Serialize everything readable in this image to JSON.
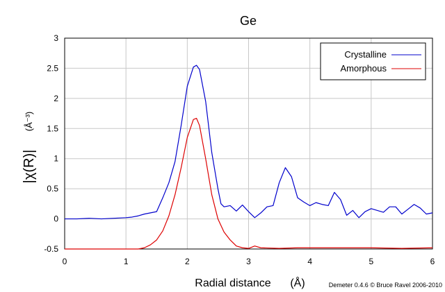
{
  "chart_data": {
    "type": "line",
    "title": "Ge",
    "xlabel": "Radial distance",
    "xlabel_unit": "(Å)",
    "ylabel": "|χ(R)|",
    "ylabel_unit": "(Å⁻³)",
    "xlim": [
      0,
      6
    ],
    "ylim": [
      -0.5,
      3
    ],
    "grid": true,
    "legend_position": "top-right",
    "x_ticks": [
      "0",
      "1",
      "2",
      "3",
      "4",
      "5",
      "6"
    ],
    "y_ticks": [
      "-0.5",
      "0",
      "0.5",
      "1",
      "1.5",
      "2",
      "2.5",
      "3"
    ],
    "x_tick_values": [
      0,
      1,
      2,
      3,
      4,
      5,
      6
    ],
    "y_tick_values": [
      -0.5,
      0,
      0.5,
      1,
      1.5,
      2,
      2.5,
      3
    ],
    "series": [
      {
        "name": "Crystalline",
        "color": "#0000cc",
        "points": [
          [
            0.0,
            0.0
          ],
          [
            0.2,
            0.0
          ],
          [
            0.4,
            0.01
          ],
          [
            0.6,
            0.0
          ],
          [
            0.8,
            0.01
          ],
          [
            1.0,
            0.02
          ],
          [
            1.1,
            0.03
          ],
          [
            1.2,
            0.05
          ],
          [
            1.3,
            0.08
          ],
          [
            1.4,
            0.1
          ],
          [
            1.5,
            0.12
          ],
          [
            1.6,
            0.35
          ],
          [
            1.7,
            0.6
          ],
          [
            1.8,
            0.95
          ],
          [
            1.9,
            1.55
          ],
          [
            2.0,
            2.2
          ],
          [
            2.1,
            2.52
          ],
          [
            2.15,
            2.55
          ],
          [
            2.2,
            2.48
          ],
          [
            2.3,
            1.95
          ],
          [
            2.4,
            1.1
          ],
          [
            2.5,
            0.5
          ],
          [
            2.55,
            0.25
          ],
          [
            2.6,
            0.2
          ],
          [
            2.7,
            0.22
          ],
          [
            2.8,
            0.13
          ],
          [
            2.9,
            0.23
          ],
          [
            3.0,
            0.12
          ],
          [
            3.1,
            0.02
          ],
          [
            3.2,
            0.1
          ],
          [
            3.3,
            0.2
          ],
          [
            3.4,
            0.22
          ],
          [
            3.5,
            0.6
          ],
          [
            3.6,
            0.85
          ],
          [
            3.7,
            0.7
          ],
          [
            3.8,
            0.35
          ],
          [
            3.9,
            0.28
          ],
          [
            4.0,
            0.22
          ],
          [
            4.1,
            0.27
          ],
          [
            4.2,
            0.24
          ],
          [
            4.3,
            0.22
          ],
          [
            4.4,
            0.44
          ],
          [
            4.5,
            0.32
          ],
          [
            4.6,
            0.06
          ],
          [
            4.7,
            0.14
          ],
          [
            4.8,
            0.02
          ],
          [
            4.9,
            0.12
          ],
          [
            5.0,
            0.17
          ],
          [
            5.1,
            0.14
          ],
          [
            5.2,
            0.11
          ],
          [
            5.3,
            0.2
          ],
          [
            5.4,
            0.2
          ],
          [
            5.5,
            0.08
          ],
          [
            5.6,
            0.16
          ],
          [
            5.7,
            0.24
          ],
          [
            5.8,
            0.18
          ],
          [
            5.9,
            0.08
          ],
          [
            6.0,
            0.1
          ]
        ]
      },
      {
        "name": "Amorphous",
        "color": "#dd0000",
        "points": [
          [
            0.0,
            -0.5
          ],
          [
            0.5,
            -0.5
          ],
          [
            1.0,
            -0.5
          ],
          [
            1.2,
            -0.5
          ],
          [
            1.3,
            -0.48
          ],
          [
            1.4,
            -0.43
          ],
          [
            1.5,
            -0.35
          ],
          [
            1.6,
            -0.2
          ],
          [
            1.7,
            0.05
          ],
          [
            1.8,
            0.4
          ],
          [
            1.9,
            0.85
          ],
          [
            2.0,
            1.35
          ],
          [
            2.1,
            1.65
          ],
          [
            2.15,
            1.67
          ],
          [
            2.2,
            1.55
          ],
          [
            2.3,
            1.0
          ],
          [
            2.4,
            0.4
          ],
          [
            2.5,
            0.0
          ],
          [
            2.6,
            -0.22
          ],
          [
            2.7,
            -0.35
          ],
          [
            2.8,
            -0.45
          ],
          [
            2.9,
            -0.48
          ],
          [
            3.0,
            -0.49
          ],
          [
            3.1,
            -0.45
          ],
          [
            3.2,
            -0.48
          ],
          [
            3.5,
            -0.49
          ],
          [
            3.8,
            -0.48
          ],
          [
            4.2,
            -0.48
          ],
          [
            4.6,
            -0.48
          ],
          [
            5.0,
            -0.48
          ],
          [
            5.5,
            -0.49
          ],
          [
            6.0,
            -0.48
          ]
        ]
      }
    ],
    "credit": "Demeter 0.4.6 © Bruce Ravel 2006-2010"
  }
}
